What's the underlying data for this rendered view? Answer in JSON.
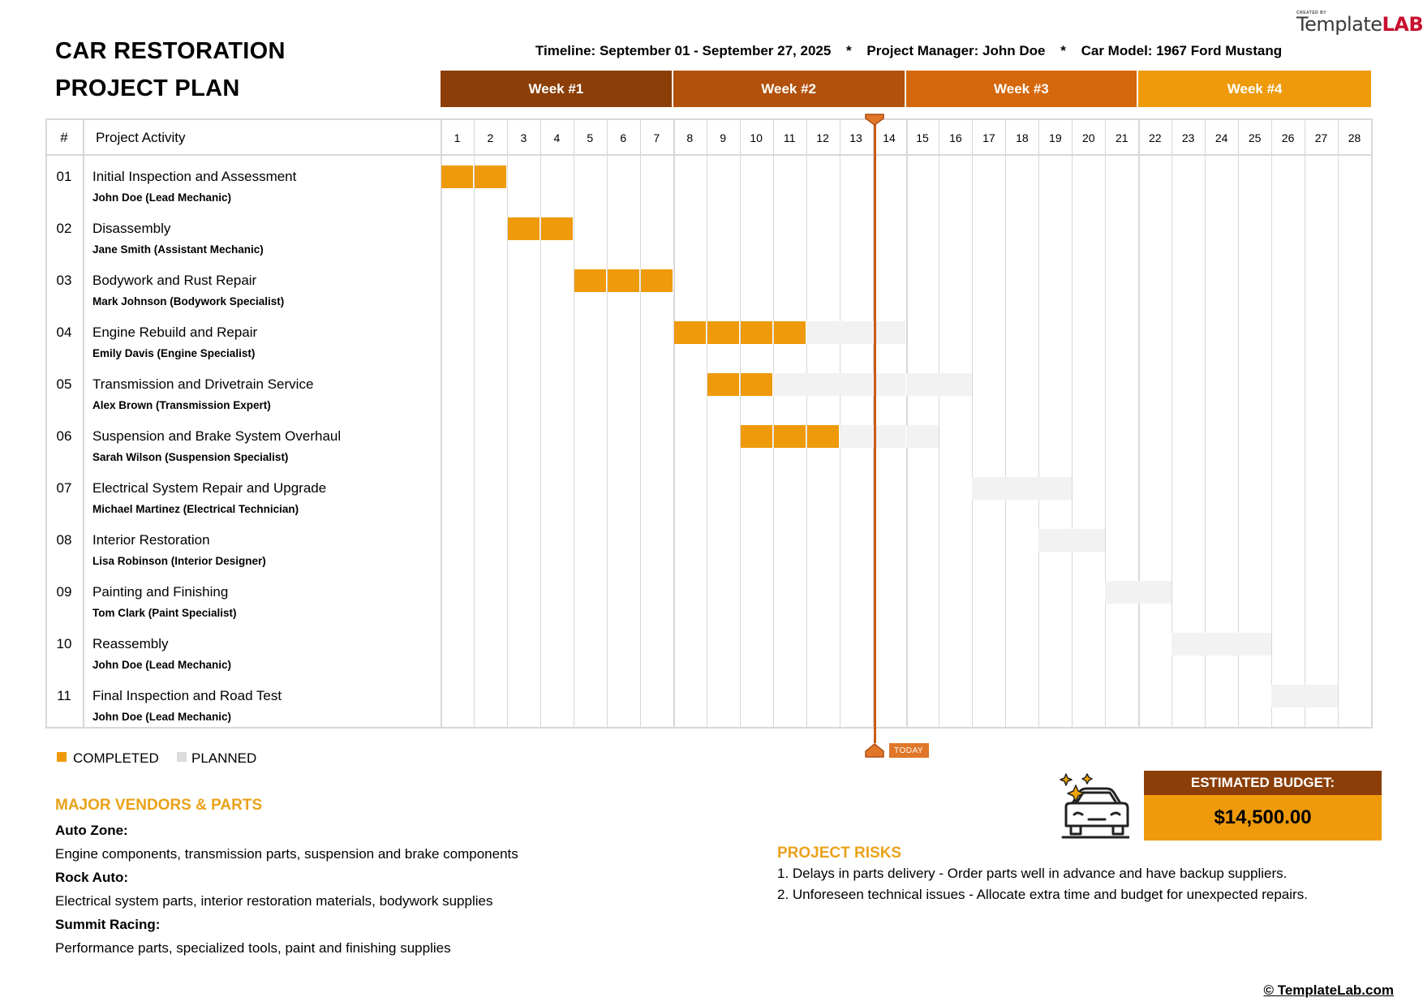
{
  "header": {
    "title_line1": "CAR RESTORATION",
    "title_line2": "PROJECT PLAN",
    "timeline": "Timeline: September 01 - September 27, 2025",
    "separator": "*",
    "manager": "Project Manager: John Doe",
    "car_model": "Car Model: 1967 Ford Mustang",
    "logo_small": "CREATED BY",
    "logo_text_1": "Template",
    "logo_text_2": "LAB"
  },
  "weeks": [
    {
      "label": "Week #1",
      "color": "#8b3e07"
    },
    {
      "label": "Week #2",
      "color": "#b2510c"
    },
    {
      "label": "Week #3",
      "color": "#d5670c"
    },
    {
      "label": "Week #4",
      "color": "#ee9a0a"
    }
  ],
  "table": {
    "col_num": "#",
    "col_activity": "Project Activity",
    "days": [
      "1",
      "2",
      "3",
      "4",
      "5",
      "6",
      "7",
      "8",
      "9",
      "10",
      "11",
      "12",
      "13",
      "14",
      "15",
      "16",
      "17",
      "18",
      "19",
      "20",
      "21",
      "22",
      "23",
      "24",
      "25",
      "26",
      "27",
      "28"
    ],
    "today_day": 14,
    "today_label": "TODAY",
    "rows": [
      {
        "num": "01",
        "activity": "Initial Inspection and Assessment",
        "owner": "John Doe (Lead Mechanic)",
        "completed": [
          1,
          2
        ],
        "planned": []
      },
      {
        "num": "02",
        "activity": "Disassembly",
        "owner": "Jane Smith (Assistant Mechanic)",
        "completed": [
          3,
          4
        ],
        "planned": []
      },
      {
        "num": "03",
        "activity": "Bodywork and Rust Repair",
        "owner": "Mark Johnson (Bodywork Specialist)",
        "completed": [
          5,
          6,
          7
        ],
        "planned": []
      },
      {
        "num": "04",
        "activity": "Engine Rebuild and Repair",
        "owner": "Emily Davis (Engine Specialist)",
        "completed": [
          8,
          9,
          10,
          11
        ],
        "planned": [
          12,
          13,
          14
        ]
      },
      {
        "num": "05",
        "activity": "Transmission and Drivetrain Service",
        "owner": "Alex Brown (Transmission Expert)",
        "completed": [
          9,
          10
        ],
        "planned": [
          11,
          12,
          13,
          14,
          15,
          16
        ]
      },
      {
        "num": "06",
        "activity": "Suspension and Brake System Overhaul",
        "owner": "Sarah Wilson (Suspension Specialist)",
        "completed": [
          10,
          11,
          12
        ],
        "planned": [
          13,
          14,
          15
        ]
      },
      {
        "num": "07",
        "activity": "Electrical System Repair and Upgrade",
        "owner": "Michael Martinez (Electrical Technician)",
        "completed": [],
        "planned": [
          17,
          18,
          19
        ]
      },
      {
        "num": "08",
        "activity": "Interior Restoration",
        "owner": "Lisa Robinson (Interior Designer)",
        "completed": [],
        "planned": [
          19,
          20
        ]
      },
      {
        "num": "09",
        "activity": "Painting and Finishing",
        "owner": "Tom Clark (Paint Specialist)",
        "completed": [],
        "planned": [
          21,
          22
        ]
      },
      {
        "num": "10",
        "activity": "Reassembly",
        "owner": "John Doe (Lead Mechanic)",
        "completed": [],
        "planned": [
          23,
          24,
          25
        ]
      },
      {
        "num": "11",
        "activity": "Final Inspection and Road Test",
        "owner": "John Doe (Lead Mechanic)",
        "completed": [],
        "planned": [
          26,
          27
        ]
      }
    ]
  },
  "legend": {
    "completed_label": "COMPLETED",
    "planned_label": "PLANNED",
    "completed_color": "#ee9a0a",
    "planned_color": "#f2f2f2"
  },
  "vendors": {
    "title": "MAJOR VENDORS & PARTS",
    "items": [
      {
        "name": "Auto Zone:",
        "parts": "Engine components, transmission parts, suspension and brake components"
      },
      {
        "name": "Rock Auto:",
        "parts": "Electrical system parts, interior restoration materials, bodywork supplies"
      },
      {
        "name": "Summit Racing:",
        "parts": "Performance parts, specialized tools, paint and finishing supplies"
      }
    ]
  },
  "risks": {
    "title": "PROJECT RISKS",
    "items": [
      "1. Delays in parts delivery - Order parts well in advance and have backup suppliers.",
      "2. Unforeseen technical issues - Allocate extra time and budget for unexpected repairs."
    ]
  },
  "budget": {
    "label": "ESTIMATED BUDGET:",
    "value": "$14,500.00",
    "icon": "car-sparkle-icon"
  },
  "footer": {
    "copyright": "© TemplateLab.com"
  }
}
